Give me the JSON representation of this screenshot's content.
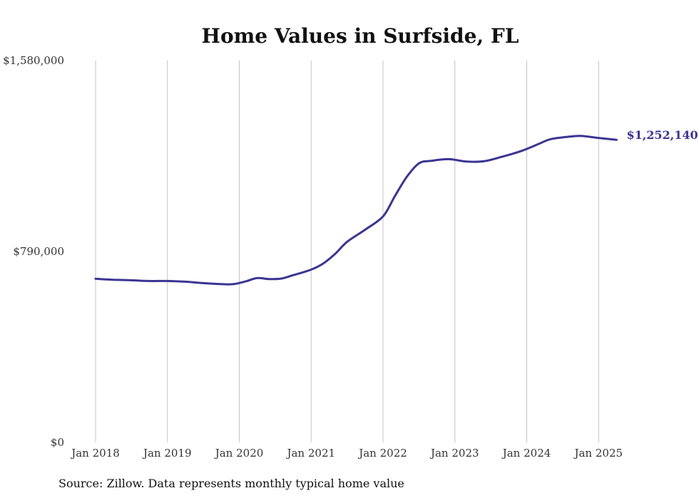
{
  "chart_data": {
    "type": "line",
    "title": "Home Values in Surfside, FL",
    "source": "Source: Zillow. Data represents monthly typical home value",
    "x_ticks": [
      "Jan 2018",
      "Jan 2019",
      "Jan 2020",
      "Jan 2021",
      "Jan 2022",
      "Jan 2023",
      "Jan 2024",
      "Jan 2025"
    ],
    "y_ticks": [
      "$0",
      "$790,000",
      "$1,580,000"
    ],
    "ylim": [
      0,
      1580000
    ],
    "xlim": [
      "2018-01",
      "2025-04"
    ],
    "grid": "vertical",
    "series": [
      {
        "color": "#3b3592",
        "points": [
          [
            "2018-01",
            677000
          ],
          [
            "2018-04",
            673000
          ],
          [
            "2018-07",
            671000
          ],
          [
            "2018-10",
            668000
          ],
          [
            "2019-01",
            668000
          ],
          [
            "2019-04",
            665000
          ],
          [
            "2019-07",
            659000
          ],
          [
            "2019-10",
            655000
          ],
          [
            "2019-12",
            655000
          ],
          [
            "2020-02",
            666000
          ],
          [
            "2020-04",
            680000
          ],
          [
            "2020-06",
            676000
          ],
          [
            "2020-08",
            678000
          ],
          [
            "2020-10",
            692000
          ],
          [
            "2021-01",
            715000
          ],
          [
            "2021-03",
            740000
          ],
          [
            "2021-05",
            780000
          ],
          [
            "2021-07",
            830000
          ],
          [
            "2021-10",
            880000
          ],
          [
            "2022-01",
            935000
          ],
          [
            "2022-03",
            1020000
          ],
          [
            "2022-05",
            1100000
          ],
          [
            "2022-07",
            1155000
          ],
          [
            "2022-09",
            1165000
          ],
          [
            "2022-12",
            1172000
          ],
          [
            "2023-03",
            1162000
          ],
          [
            "2023-06",
            1164000
          ],
          [
            "2023-09",
            1183000
          ],
          [
            "2023-12",
            1205000
          ],
          [
            "2024-03",
            1235000
          ],
          [
            "2024-05",
            1255000
          ],
          [
            "2024-08",
            1265000
          ],
          [
            "2024-10",
            1268000
          ],
          [
            "2025-01",
            1260000
          ],
          [
            "2025-04",
            1252140
          ]
        ]
      }
    ],
    "end_label": "$1,252,140"
  }
}
